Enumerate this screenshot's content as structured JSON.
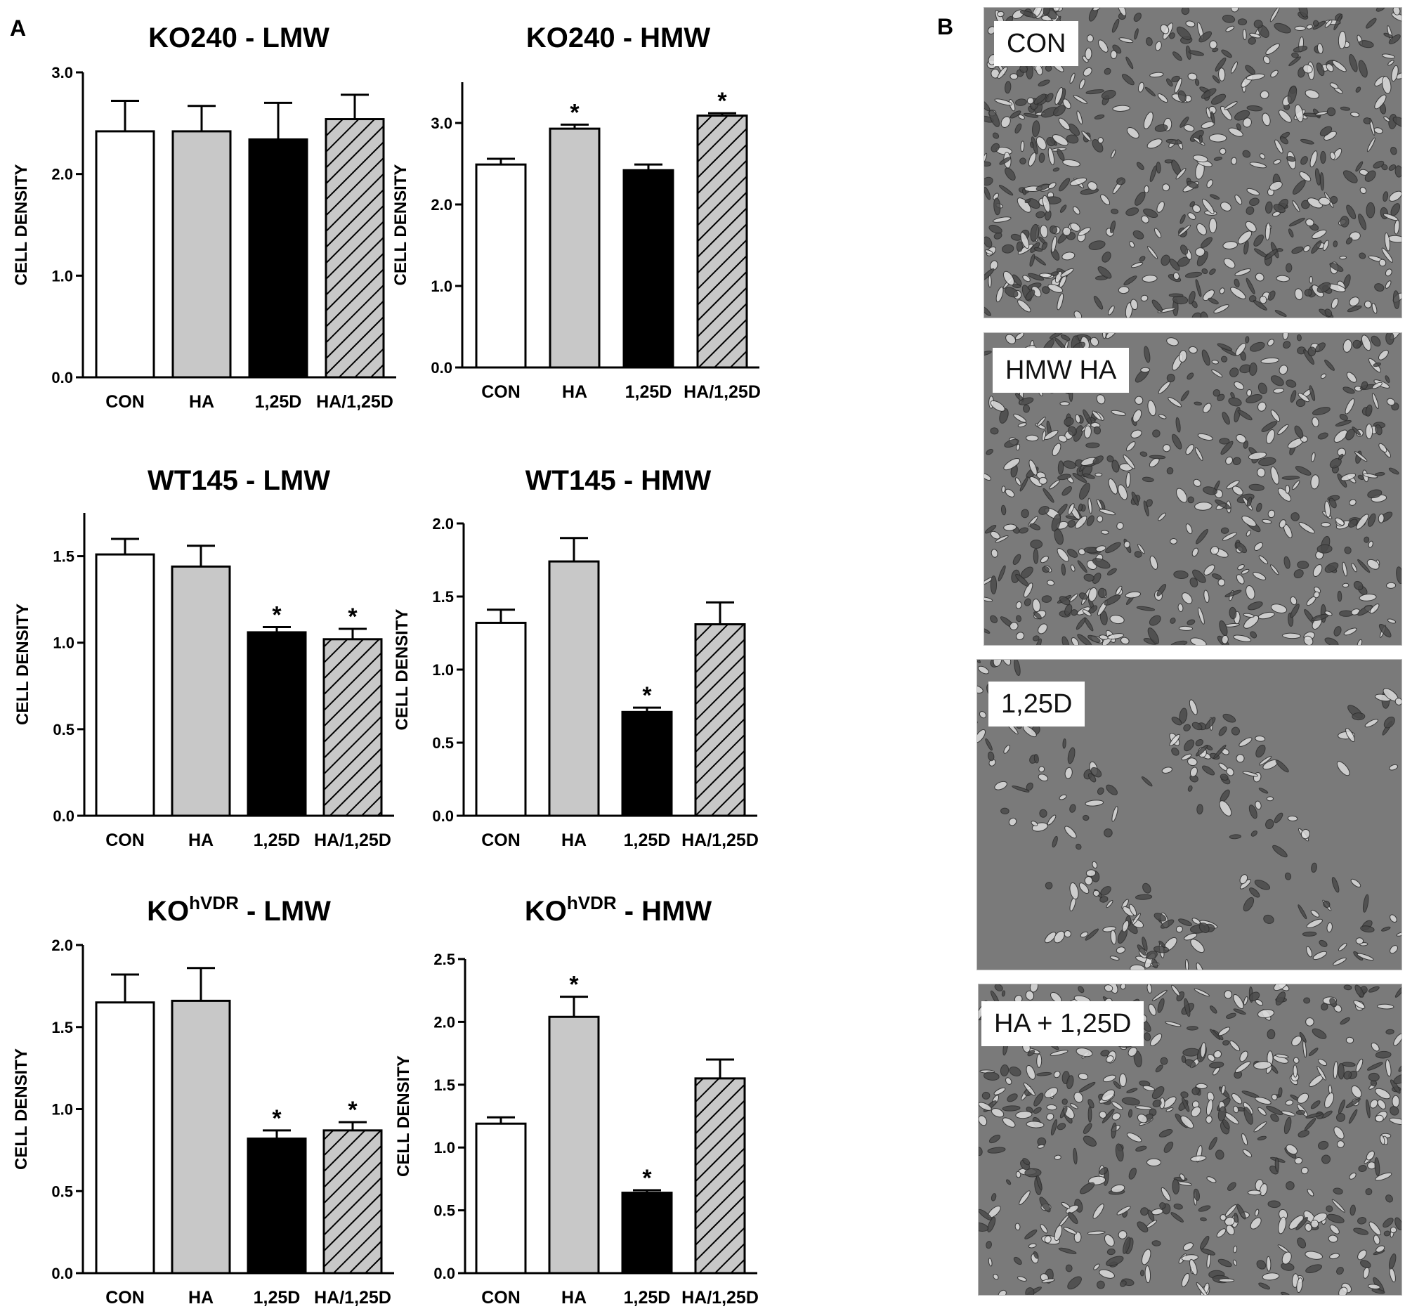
{
  "panel_labels": {
    "a": "A",
    "b": "B"
  },
  "colors": {
    "con": "#ffffff",
    "ha": "#c8c8c8",
    "d": "#000000",
    "hatch_bg": "#c8c8c8",
    "hatch_line": "#000000",
    "micro_bg": "#7a7a7a"
  },
  "chart_data": [
    {
      "type": "bar",
      "title_main": "KO240",
      "title_sup": "",
      "title_suffix": " - LMW",
      "ylabel": "CELL DENSITY",
      "categories": [
        "CON",
        "HA",
        "1,25D",
        "HA/1,25D"
      ],
      "values": [
        2.42,
        2.42,
        2.34,
        2.54
      ],
      "errors": [
        0.3,
        0.25,
        0.36,
        0.24
      ],
      "significant": [
        false,
        false,
        false,
        false
      ],
      "ylim": [
        0,
        3.0
      ],
      "yticks": [
        "0.0",
        "1.0",
        "2.0",
        "3.0"
      ],
      "ytick_values": [
        0,
        1.0,
        2.0,
        3.0
      ]
    },
    {
      "type": "bar",
      "title_main": "KO240",
      "title_sup": "",
      "title_suffix": " - HMW",
      "ylabel": "CELL DENSITY",
      "categories": [
        "CON",
        "HA",
        "1,25D",
        "HA/1,25D"
      ],
      "values": [
        2.49,
        2.93,
        2.42,
        3.09
      ],
      "errors": [
        0.07,
        0.05,
        0.07,
        0.03
      ],
      "significant": [
        false,
        true,
        false,
        true
      ],
      "ylim": [
        0,
        3.5
      ],
      "yticks": [
        "0.0",
        "1.0",
        "2.0",
        "3.0"
      ],
      "ytick_values": [
        0,
        1.0,
        2.0,
        3.0
      ]
    },
    {
      "type": "bar",
      "title_main": "WT145",
      "title_sup": "",
      "title_suffix": " - LMW",
      "ylabel": "CELL DENSITY",
      "categories": [
        "CON",
        "HA",
        "1,25D",
        "HA/1,25D"
      ],
      "values": [
        1.51,
        1.44,
        1.06,
        1.02
      ],
      "errors": [
        0.09,
        0.12,
        0.03,
        0.06
      ],
      "significant": [
        false,
        false,
        true,
        true
      ],
      "ylim": [
        0,
        1.75
      ],
      "yticks": [
        "0.0",
        "0.5",
        "1.0",
        "1.5"
      ],
      "ytick_values": [
        0,
        0.5,
        1.0,
        1.5
      ]
    },
    {
      "type": "bar",
      "title_main": "WT145",
      "title_sup": "",
      "title_suffix": " - HMW",
      "ylabel": "CELL DENSITY",
      "categories": [
        "CON",
        "HA",
        "1,25D",
        "HA/1,25D"
      ],
      "values": [
        1.32,
        1.74,
        0.71,
        1.31
      ],
      "errors": [
        0.09,
        0.16,
        0.03,
        0.15
      ],
      "significant": [
        false,
        false,
        true,
        false
      ],
      "ylim": [
        0,
        2.0
      ],
      "yticks": [
        "0.0",
        "0.5",
        "1.0",
        "1.5",
        "2.0"
      ],
      "ytick_values": [
        0,
        0.5,
        1.0,
        1.5,
        2.0
      ]
    },
    {
      "type": "bar",
      "title_main": "KO",
      "title_sup": "hVDR",
      "title_suffix": " - LMW",
      "ylabel": "CELL DENSITY",
      "categories": [
        "CON",
        "HA",
        "1,25D",
        "HA/1,25D"
      ],
      "values": [
        1.65,
        1.66,
        0.82,
        0.87
      ],
      "errors": [
        0.17,
        0.2,
        0.05,
        0.05
      ],
      "significant": [
        false,
        false,
        true,
        true
      ],
      "ylim": [
        0,
        2.0
      ],
      "yticks": [
        "0.0",
        "0.5",
        "1.0",
        "1.5",
        "2.0"
      ],
      "ytick_values": [
        0,
        0.5,
        1.0,
        1.5,
        2.0
      ]
    },
    {
      "type": "bar",
      "title_main": "KO",
      "title_sup": "hVDR",
      "title_suffix": " - HMW",
      "ylabel": "CELL DENSITY",
      "categories": [
        "CON",
        "HA",
        "1,25D",
        "HA/1,25D"
      ],
      "values": [
        1.19,
        2.04,
        0.64,
        1.55
      ],
      "errors": [
        0.05,
        0.16,
        0.02,
        0.15
      ],
      "significant": [
        false,
        true,
        true,
        false
      ],
      "ylim": [
        0,
        2.5
      ],
      "yticks": [
        "0.0",
        "0.5",
        "1.0",
        "1.5",
        "2.0",
        "2.5"
      ],
      "ytick_values": [
        0,
        0.5,
        1.0,
        1.5,
        2.0,
        2.5
      ]
    }
  ],
  "significance_marker": "*",
  "micrographs": [
    {
      "label": "CON",
      "density": 0.85
    },
    {
      "label": "HMW HA",
      "density": 0.8
    },
    {
      "label": "1,25D",
      "density": 0.35
    },
    {
      "label": "HA + 1,25D",
      "density": 0.75
    }
  ]
}
